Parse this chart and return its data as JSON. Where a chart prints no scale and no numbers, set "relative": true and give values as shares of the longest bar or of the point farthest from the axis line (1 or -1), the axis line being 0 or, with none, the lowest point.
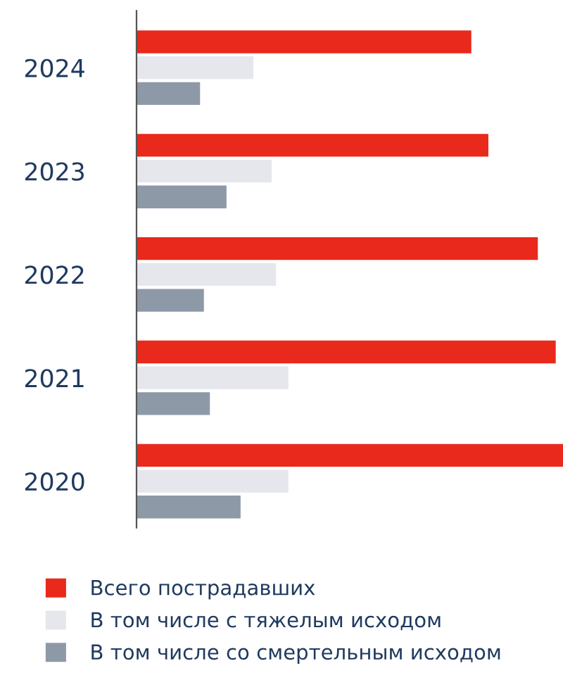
{
  "chart_data": {
    "type": "bar",
    "orientation": "horizontal",
    "relative": true,
    "legend": "bottom",
    "grid": false,
    "categories": [
      "2024",
      "2023",
      "2022",
      "2021",
      "2020"
    ],
    "series": [
      {
        "name": "Всего пострадавших",
        "color": "#e8291c",
        "values": [
          0.785,
          0.825,
          0.941,
          0.983,
          1
        ]
      },
      {
        "name": "В том числе с тяжелым исходом",
        "color": "#e6e7ec",
        "values": [
          0.274,
          0.317,
          0.327,
          0.356,
          0.356
        ]
      },
      {
        "name": "В том числе со смертельным исходом",
        "color": "#8e99a8",
        "values": [
          0.149,
          0.211,
          0.158,
          0.172,
          0.244
        ]
      }
    ]
  }
}
